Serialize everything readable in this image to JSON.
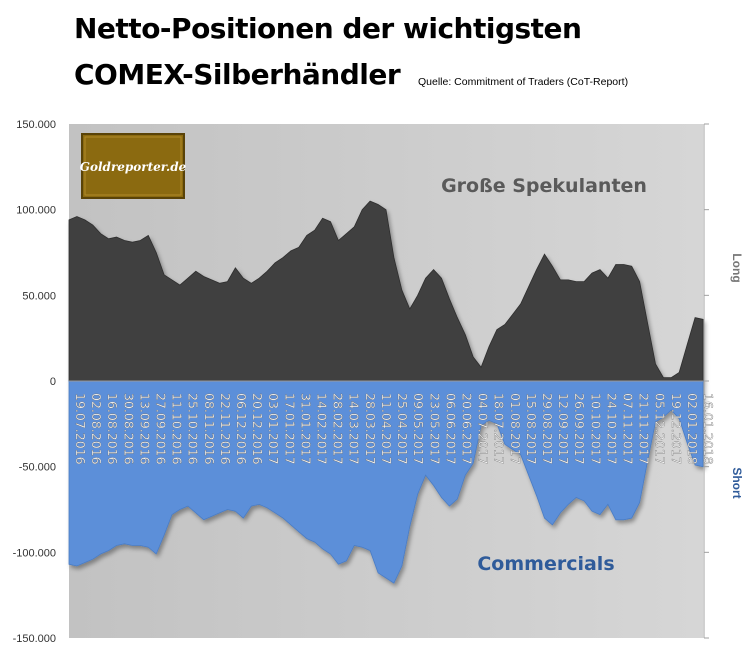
{
  "header": {
    "title_line1": "Netto-Positionen der wichtigsten",
    "title_line2": "COMEX-Silberhändler",
    "source": "Quelle: Commitment of Traders (CoT-Report)"
  },
  "logo": {
    "text": "Goldreporter.de"
  },
  "colors": {
    "long_fill": "#404040",
    "short_fill": "#5b8fd9",
    "plot_bg": "#cfcfcf",
    "label_long": "#5a5a5a",
    "label_short": "#2f5b9a",
    "logo_bg": "#8b6a10"
  },
  "chart_data": {
    "type": "area",
    "ylim": [
      -150000,
      150000
    ],
    "yticks": [
      150000,
      100000,
      50000,
      0,
      -50000,
      -100000,
      -150000
    ],
    "ytick_labels": [
      "150.000",
      "100.000",
      "50.000",
      "0",
      "-50.000",
      "-100.000",
      "-150.000"
    ],
    "right_axis_labels": {
      "upper": "Long",
      "lower": "Short"
    },
    "x_tick_labels": [
      "19.07.2016",
      "02.08.2016",
      "16.08.2016",
      "30.08.2016",
      "13.09.2016",
      "27.09.2016",
      "11.10.2016",
      "25.10.2016",
      "08.11.2016",
      "22.11.2016",
      "06.12.2016",
      "20.12.2016",
      "03.01.2017",
      "17.01.2017",
      "31.01.2017",
      "14.02.2017",
      "28.02.2017",
      "14.03.2017",
      "28.03.2017",
      "11.04.2017",
      "25.04.2017",
      "09.05.2017",
      "23.05.2017",
      "06.06.2017",
      "20.06.2017",
      "04.07.2017",
      "18.07.2017",
      "01.08.2017",
      "15.08.2017",
      "29.08.2017",
      "12.09.2017",
      "26.09.2017",
      "10.10.2017",
      "24.10.2017",
      "07.11.2017",
      "21.11.2017",
      "05.12.2017",
      "19.12.2017",
      "02.01.2018",
      "16.01.2018"
    ],
    "series": [
      {
        "name": "Große Spekulanten",
        "values": [
          94000,
          96000,
          94000,
          91000,
          86000,
          83000,
          84000,
          82000,
          81000,
          82000,
          85000,
          75000,
          62000,
          59000,
          56000,
          60000,
          64000,
          61000,
          59000,
          57000,
          58000,
          66000,
          60000,
          57000,
          60000,
          64000,
          69000,
          72000,
          76000,
          78000,
          85000,
          88000,
          95000,
          93000,
          82000,
          86000,
          90000,
          100000,
          105000,
          103000,
          100000,
          72000,
          53000,
          42000,
          50000,
          60000,
          65000,
          60000,
          48000,
          37000,
          27000,
          14000,
          8000,
          20000,
          30000,
          33000,
          39000,
          45000,
          55000,
          65000,
          74000,
          67000,
          59000,
          59000,
          58000,
          58000,
          63000,
          65000,
          60000,
          68000,
          68000,
          67000,
          58000,
          34000,
          10000,
          2000,
          2000,
          5000,
          21000,
          37000,
          36000
        ]
      },
      {
        "name": "Commercials",
        "values": [
          -107000,
          -108000,
          -106000,
          -104000,
          -101000,
          -99000,
          -96000,
          -95000,
          -96000,
          -96000,
          -97000,
          -101000,
          -90000,
          -78000,
          -75000,
          -73000,
          -77000,
          -81000,
          -79000,
          -77000,
          -75000,
          -76000,
          -80000,
          -73000,
          -72000,
          -74000,
          -77000,
          -80000,
          -84000,
          -88000,
          -92000,
          -94000,
          -98000,
          -101000,
          -107000,
          -105000,
          -96000,
          -97000,
          -99000,
          -112000,
          -115000,
          -118000,
          -108000,
          -85000,
          -66000,
          -55000,
          -61000,
          -68000,
          -73000,
          -69000,
          -55000,
          -48000,
          -26000,
          -23000,
          -25000,
          -37000,
          -40000,
          -43000,
          -55000,
          -67000,
          -80000,
          -84000,
          -77000,
          -72000,
          -68000,
          -70000,
          -76000,
          -78000,
          -72000,
          -81000,
          -81000,
          -80000,
          -71000,
          -47000,
          -24000,
          -21000,
          -17000,
          -22000,
          -36000,
          -49000,
          -50000
        ]
      }
    ]
  }
}
